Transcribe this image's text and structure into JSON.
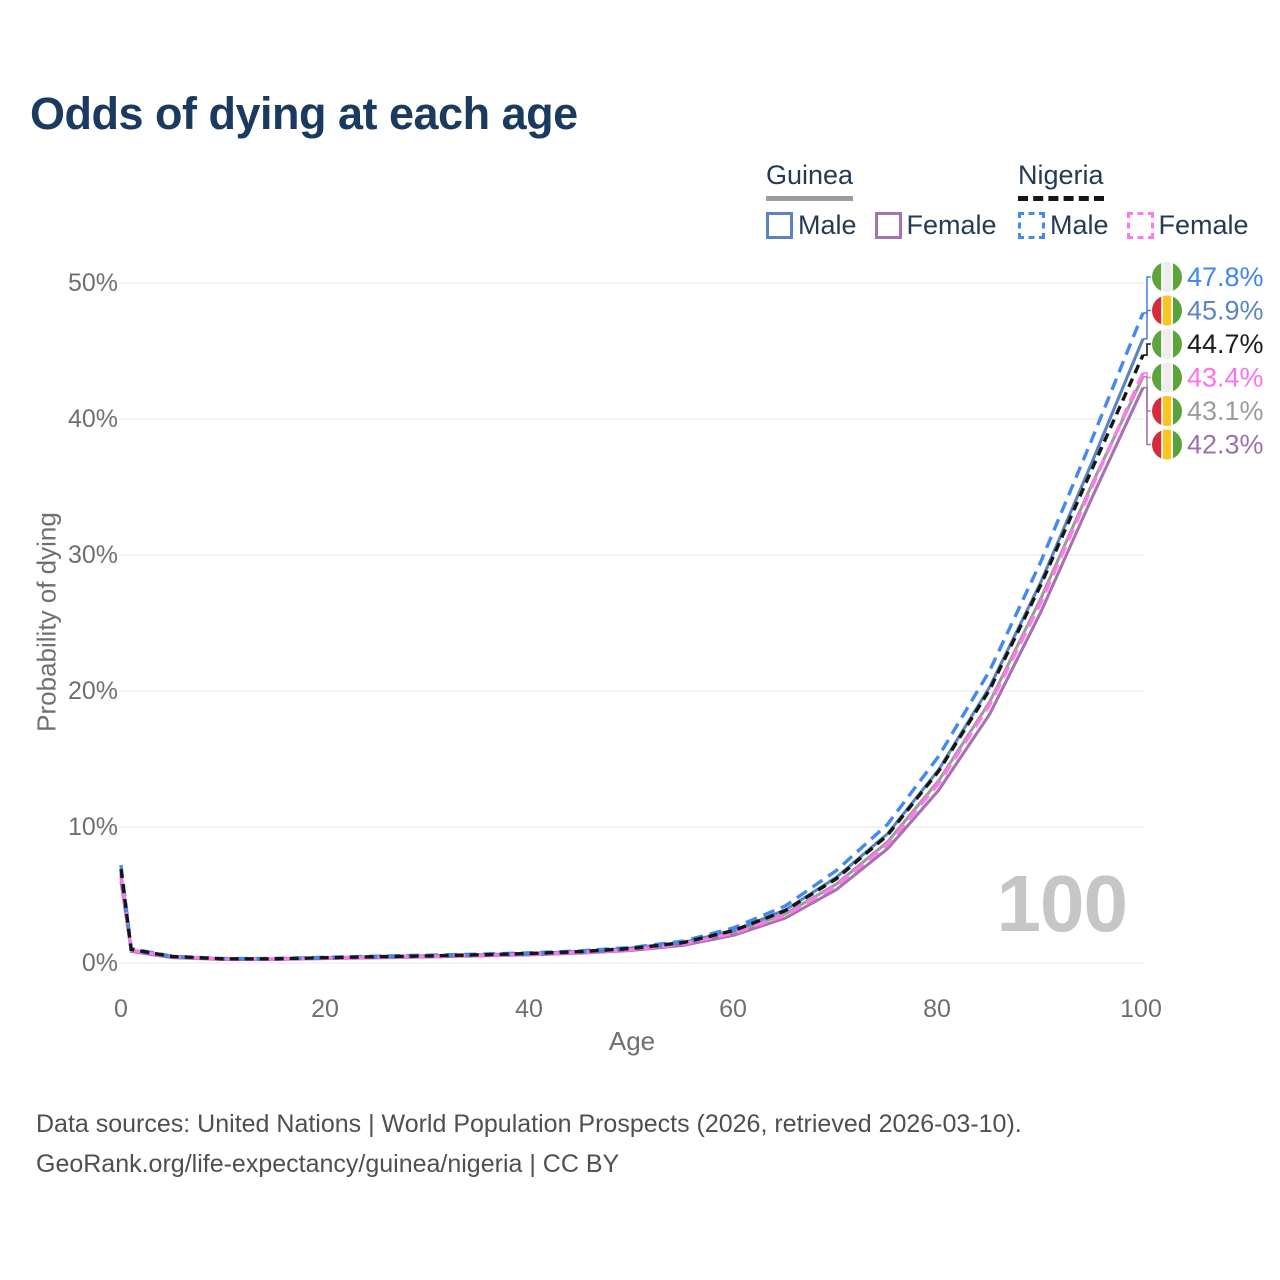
{
  "title": "Odds of dying at each age",
  "legend": {
    "groups": [
      {
        "name": "Guinea",
        "style": "solid",
        "items": [
          {
            "label": "Male"
          },
          {
            "label": "Female"
          }
        ]
      },
      {
        "name": "Nigeria",
        "style": "dashed",
        "items": [
          {
            "label": "Male"
          },
          {
            "label": "Female"
          }
        ]
      }
    ]
  },
  "footer": {
    "line1": "Data sources: United Nations | World Population Prospects (2026, retrieved 2026-03-10).",
    "line2": "GeoRank.org/life-expectancy/guinea/nigeria | CC BY"
  },
  "chart_data": {
    "type": "line",
    "title": "Odds of dying at each age",
    "xlabel": "Age",
    "ylabel": "Probability of dying",
    "xlim": [
      0,
      100
    ],
    "ylim": [
      0,
      50
    ],
    "x_ticks": [
      "0",
      "20",
      "40",
      "60",
      "80",
      "100"
    ],
    "y_ticks": [
      "0%",
      "10%",
      "20%",
      "30%",
      "40%",
      "50%"
    ],
    "grid": "horizontal",
    "legend_position": "top-right",
    "hover_age_watermark": "100",
    "x": [
      0,
      1,
      5,
      10,
      15,
      20,
      25,
      30,
      35,
      40,
      45,
      50,
      55,
      60,
      65,
      70,
      75,
      80,
      85,
      90,
      95,
      100
    ],
    "series": [
      {
        "name": "Nigeria Male",
        "country": "nigeria",
        "sex": "male",
        "color": "#4289f2",
        "label_color": "#3d87f2",
        "dashed": true,
        "dash_pattern": "12 7",
        "end_label": "47.8%",
        "values": [
          7.2,
          1.05,
          0.5,
          0.32,
          0.33,
          0.42,
          0.5,
          0.57,
          0.65,
          0.75,
          0.9,
          1.15,
          1.6,
          2.6,
          4.2,
          6.8,
          10.2,
          15.2,
          21.5,
          29.5,
          38.5,
          47.8
        ]
      },
      {
        "name": "Guinea Male",
        "country": "guinea",
        "sex": "male",
        "color": "#5a83c2",
        "label_color": "#5a86c5",
        "dashed": false,
        "dash_pattern": "",
        "end_label": "45.9%",
        "values": [
          6.6,
          0.95,
          0.45,
          0.3,
          0.3,
          0.38,
          0.46,
          0.53,
          0.6,
          0.7,
          0.85,
          1.1,
          1.5,
          2.4,
          3.9,
          6.3,
          9.5,
          14.2,
          20.3,
          28.0,
          36.8,
          45.9
        ]
      },
      {
        "name": "Nigeria Both sexes",
        "country": "nigeria",
        "sex": "both",
        "color": "#161616",
        "label_color": "#1c1c1c",
        "dashed": true,
        "dash_pattern": "9 6",
        "end_label": "44.7%",
        "values": [
          6.9,
          1.0,
          0.48,
          0.31,
          0.31,
          0.39,
          0.46,
          0.52,
          0.6,
          0.7,
          0.84,
          1.07,
          1.5,
          2.4,
          3.85,
          6.2,
          9.4,
          14.1,
          20.1,
          27.8,
          36.3,
          44.7
        ]
      },
      {
        "name": "Nigeria Female",
        "country": "nigeria",
        "sex": "female",
        "color": "#ff79ea",
        "label_color": "#ff70ee",
        "dashed": true,
        "dash_pattern": "12 7",
        "end_label": "43.4%",
        "values": [
          6.5,
          0.95,
          0.46,
          0.3,
          0.29,
          0.35,
          0.42,
          0.48,
          0.55,
          0.64,
          0.77,
          0.98,
          1.4,
          2.2,
          3.5,
          5.7,
          8.7,
          13.2,
          19.0,
          26.5,
          35.0,
          43.4
        ]
      },
      {
        "name": "Guinea Both sexes",
        "country": "guinea",
        "sex": "both",
        "color": "#9c9c9c",
        "label_color": "#9b9b9b",
        "dashed": false,
        "dash_pattern": "",
        "end_label": "43.1%",
        "values": [
          6.3,
          0.9,
          0.43,
          0.28,
          0.28,
          0.35,
          0.42,
          0.49,
          0.56,
          0.66,
          0.8,
          1.02,
          1.4,
          2.25,
          3.6,
          5.8,
          8.9,
          13.4,
          19.2,
          26.8,
          35.2,
          43.1
        ]
      },
      {
        "name": "Guinea Female",
        "country": "guinea",
        "sex": "female",
        "color": "#a772b0",
        "label_color": "#a070ae",
        "dashed": false,
        "dash_pattern": "",
        "end_label": "42.3%",
        "values": [
          6.0,
          0.85,
          0.4,
          0.26,
          0.26,
          0.32,
          0.38,
          0.45,
          0.52,
          0.6,
          0.73,
          0.93,
          1.3,
          2.05,
          3.3,
          5.4,
          8.4,
          12.7,
          18.3,
          25.8,
          34.2,
          42.3
        ]
      }
    ],
    "flag_colors": {
      "guinea": [
        "#d52b3a",
        "#f9c51e",
        "#58a23e"
      ],
      "nigeria": [
        "#5fa33c",
        "#ededed",
        "#5fa33c"
      ]
    },
    "colors": {
      "grid": "#e9e9e9",
      "axis_text": "#6f6f6f",
      "title_text": "#1b3a5f",
      "watermark": "#c6c6c6"
    }
  }
}
